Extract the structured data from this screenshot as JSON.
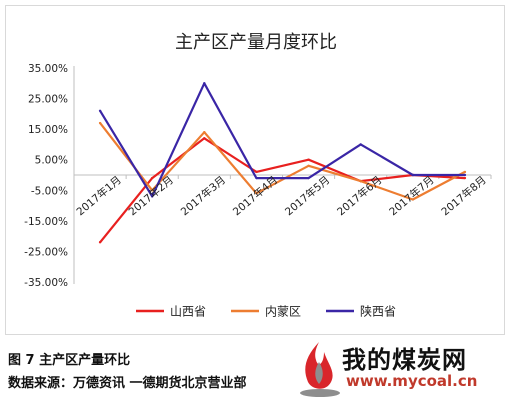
{
  "chart_data": {
    "type": "line",
    "title": "主产区产量月度环比",
    "categories": [
      "2017年1月",
      "2017年2月",
      "2017年3月",
      "2017年4月",
      "2017年5月",
      "2017年6月",
      "2017年7月",
      "2017年8月"
    ],
    "y_ticks": [
      "35.00%",
      "25.00%",
      "15.00%",
      "5.00%",
      "-5.00%",
      "-15.00%",
      "-25.00%",
      "-35.00%"
    ],
    "ylim": [
      -35,
      35
    ],
    "y_unit": "%",
    "grid": false,
    "legend_position": "bottom",
    "series": [
      {
        "name": "山西省",
        "color": "#e8201f",
        "values": [
          -22,
          -1,
          12,
          1,
          5,
          -2,
          0,
          -1
        ]
      },
      {
        "name": "内蒙区",
        "color": "#ed7d31",
        "values": [
          17,
          -5,
          14,
          -6,
          3,
          -2,
          -8,
          1
        ]
      },
      {
        "name": "陕西省",
        "color": "#3a26a6",
        "values": [
          21,
          -7,
          30,
          -1,
          -1,
          10,
          0,
          0
        ]
      }
    ]
  },
  "caption": {
    "figure": "图 7  主产区产量环比",
    "source": "数据来源：万德资讯  一德期货北京营业部"
  },
  "watermark": {
    "text": "我的煤炭网",
    "url": "www.mycoal.cn"
  }
}
